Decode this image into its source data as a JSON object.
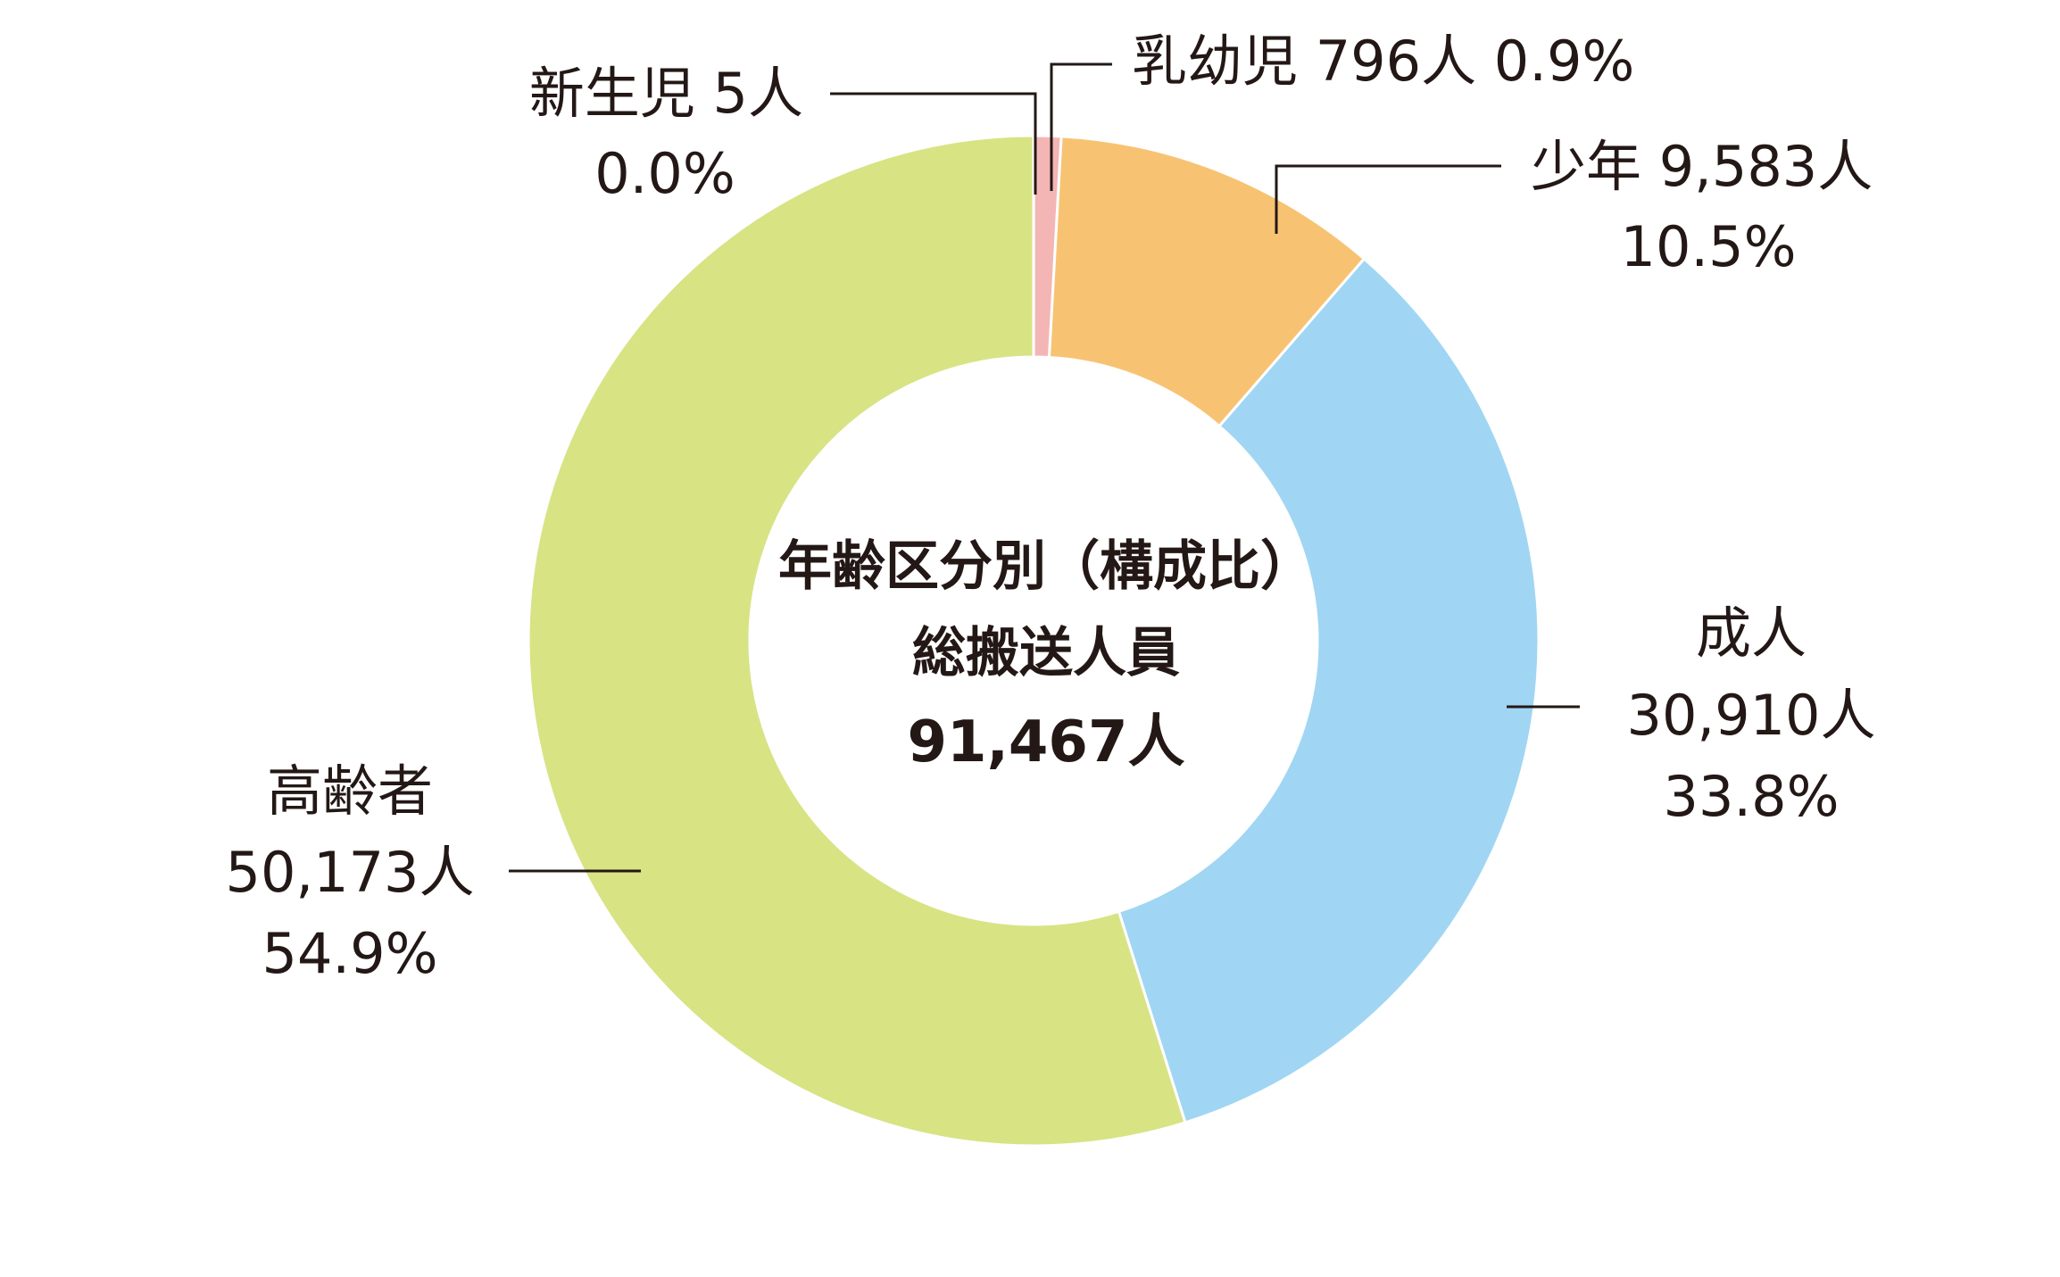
{
  "chart_data": {
    "type": "pie",
    "variant": "donut",
    "center_label": {
      "line1": "年齢区分別（構成比）",
      "line2": "総搬送人員",
      "line3": "91,467人"
    },
    "total": 91467,
    "slices": [
      {
        "key": "newborn",
        "category": "新生児",
        "count": 5,
        "count_label": "5人",
        "percent_label": "0.0%",
        "color": "#f4b5b5"
      },
      {
        "key": "infant",
        "category": "乳幼児",
        "count": 796,
        "count_label": "796人",
        "percent_label": "0.9%",
        "color": "#f4b5b5"
      },
      {
        "key": "youth",
        "category": "少年",
        "count": 9583,
        "count_label": "9,583人",
        "percent_label": "10.5%",
        "color": "#f7c373"
      },
      {
        "key": "adult",
        "category": "成人",
        "count": 30910,
        "count_label": "30,910人",
        "percent_label": "33.8%",
        "color": "#a0d6f3"
      },
      {
        "key": "elderly",
        "category": "高齢者",
        "count": 50173,
        "count_label": "50,173人",
        "percent_label": "54.9%",
        "color": "#d8e384"
      }
    ]
  }
}
